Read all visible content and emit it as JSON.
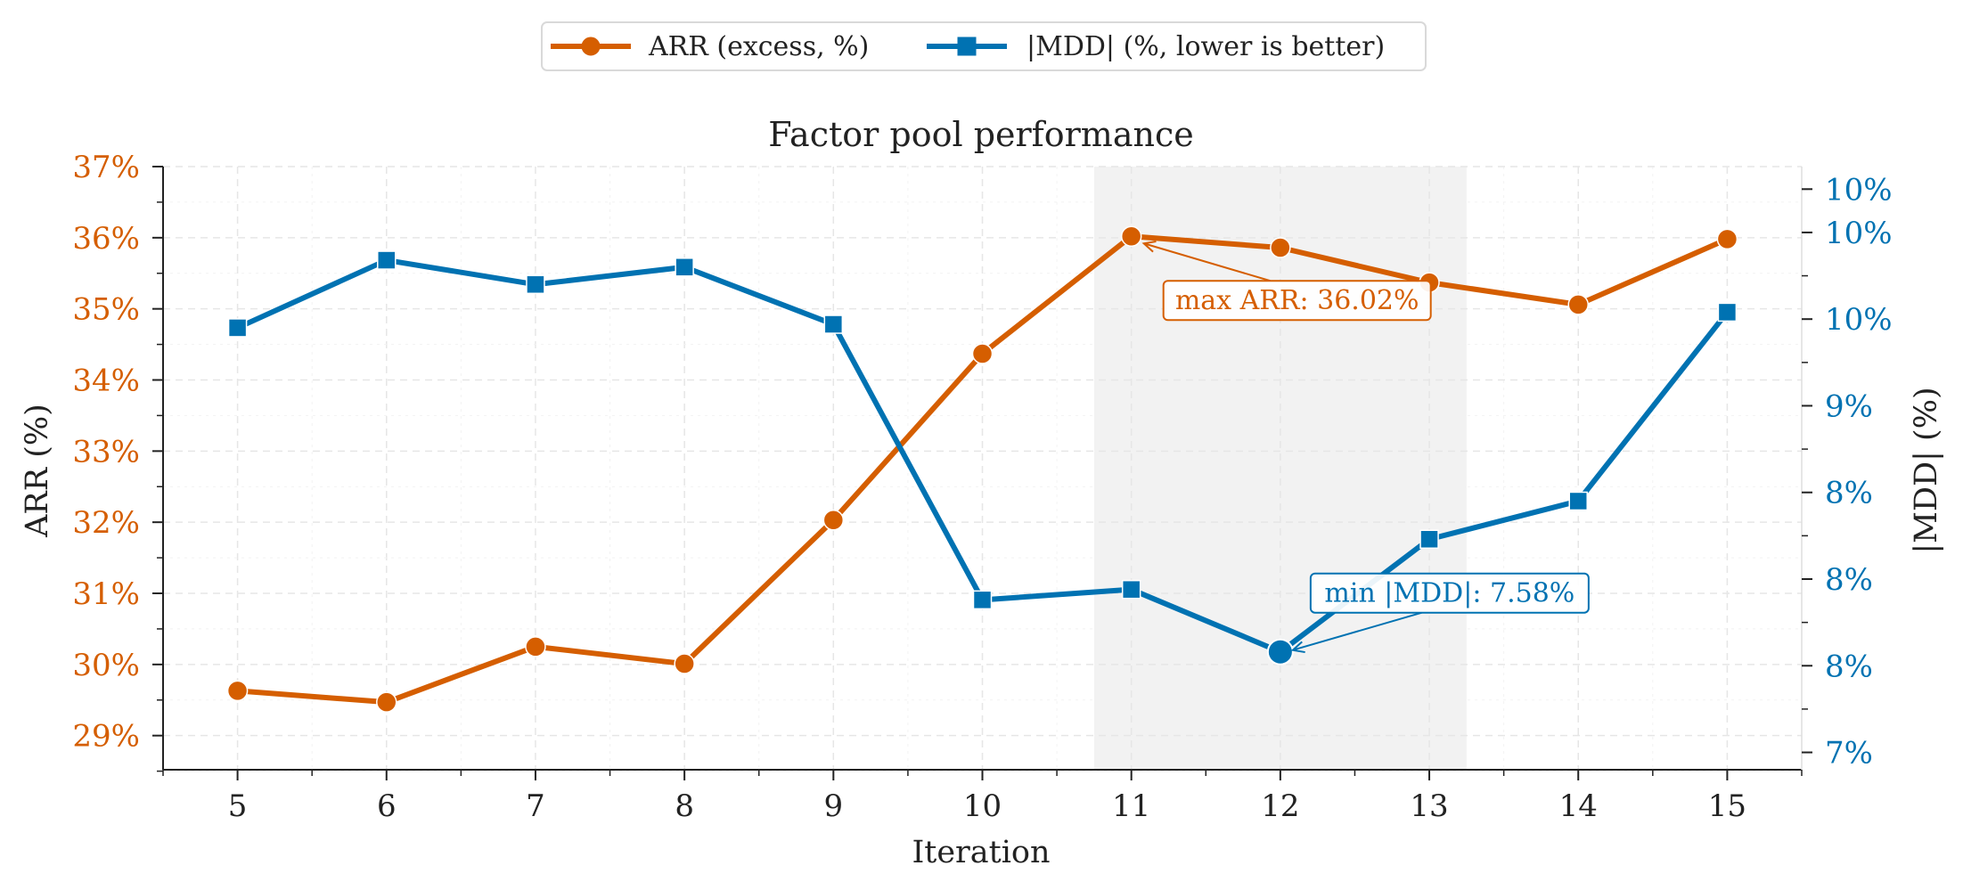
{
  "chart_data": {
    "type": "line",
    "title": "Factor pool performance",
    "xlabel": "Iteration",
    "x": [
      5,
      6,
      7,
      8,
      9,
      10,
      11,
      12,
      13,
      14,
      15
    ],
    "xlim": [
      4.5,
      15.5
    ],
    "series": [
      {
        "name": "ARR (excess, %)",
        "axis": "left",
        "color": "#d55e00",
        "marker": "circle",
        "values": [
          29.63,
          29.47,
          30.25,
          30.01,
          32.03,
          34.37,
          36.02,
          35.86,
          35.37,
          35.06,
          35.98
        ]
      },
      {
        "name": "|MDD| (%, lower is better)",
        "axis": "right",
        "color": "#0072b2",
        "marker": "square",
        "values": [
          9.45,
          9.84,
          9.7,
          9.8,
          9.47,
          7.88,
          7.94,
          7.58,
          8.23,
          8.45,
          9.54
        ]
      }
    ],
    "y_left": {
      "label": "ARR (%)",
      "color": "#d55e00",
      "lim": [
        28.52,
        37.0
      ],
      "ticks": [
        29,
        30,
        31,
        32,
        33,
        34,
        35,
        36,
        37
      ],
      "tick_labels": [
        "29%",
        "30%",
        "31%",
        "32%",
        "33%",
        "34%",
        "35%",
        "36%",
        "37%"
      ]
    },
    "y_right": {
      "label": "|MDD| (%)",
      "color": "#0072b2",
      "lim": [
        6.9,
        10.38
      ],
      "ticks": [
        7.0,
        7.5,
        8.0,
        8.5,
        9.0,
        9.5,
        10.0,
        10.25
      ],
      "tick_labels": [
        "7%",
        "8%",
        "8%",
        "8%",
        "9%",
        "10%",
        "10%",
        "10%"
      ]
    },
    "highlight_region": {
      "x0": 10.75,
      "x1": 13.25,
      "color": "#f2f2f2"
    },
    "annotations": [
      {
        "text": "max ARR: 36.02%",
        "series": 0,
        "x": 11,
        "y": 36.02,
        "color": "#d55e00"
      },
      {
        "text": "min |MDD|: 7.58%",
        "series": 1,
        "x": 12,
        "y": 7.58,
        "color": "#0072b2"
      }
    ],
    "grid": true,
    "legend_position": "top-center"
  }
}
